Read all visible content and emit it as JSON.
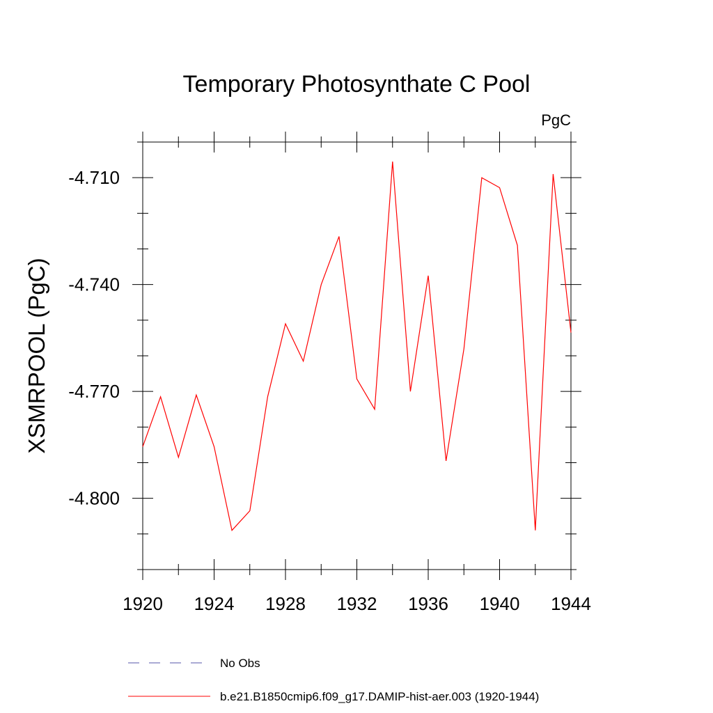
{
  "chart_data": {
    "type": "line",
    "title": "Temporary Photosynthate C Pool",
    "units": "PgC",
    "ylabel": "XSMRPOOL  (PgC)",
    "xlabel": "",
    "xlim": [
      1920,
      1944
    ],
    "ylim": [
      -4.82,
      -4.7
    ],
    "x_ticks": [
      1920,
      1924,
      1928,
      1932,
      1936,
      1940,
      1944
    ],
    "x_minor_step": 2,
    "y_ticks": [
      -4.71,
      -4.74,
      -4.77,
      -4.8
    ],
    "y_tick_labels": [
      "-4.710",
      "-4.740",
      "-4.770",
      "-4.800"
    ],
    "y_minor_step": 0.01,
    "grid": false,
    "legend_placement": "bottom",
    "series": [
      {
        "name": "b.e21.B1850cmip6.f09_g17.DAMIP-hist-aer.003 (1920-1944)",
        "color": "#ff0000",
        "dash": "solid",
        "x": [
          1920,
          1921,
          1922,
          1923,
          1924,
          1925,
          1926,
          1927,
          1928,
          1929,
          1930,
          1931,
          1932,
          1933,
          1934,
          1935,
          1936,
          1937,
          1938,
          1939,
          1940,
          1941,
          1942,
          1943,
          1944
        ],
        "y": [
          -4.7855,
          -4.7715,
          -4.7885,
          -4.771,
          -4.7855,
          -4.809,
          -4.8035,
          -4.7715,
          -4.751,
          -4.7615,
          -4.74,
          -4.7265,
          -4.7665,
          -4.775,
          -4.7055,
          -4.77,
          -4.7375,
          -4.7895,
          -4.758,
          -4.71,
          -4.7128,
          -4.729,
          -4.809,
          -4.709,
          -4.7535
        ]
      }
    ],
    "legend": [
      {
        "label": "No Obs",
        "color": "#5555aa",
        "dash": "dashed"
      },
      {
        "label": "b.e21.B1850cmip6.f09_g17.DAMIP-hist-aer.003 (1920-1944)",
        "color": "#ff0000",
        "dash": "solid"
      }
    ]
  }
}
